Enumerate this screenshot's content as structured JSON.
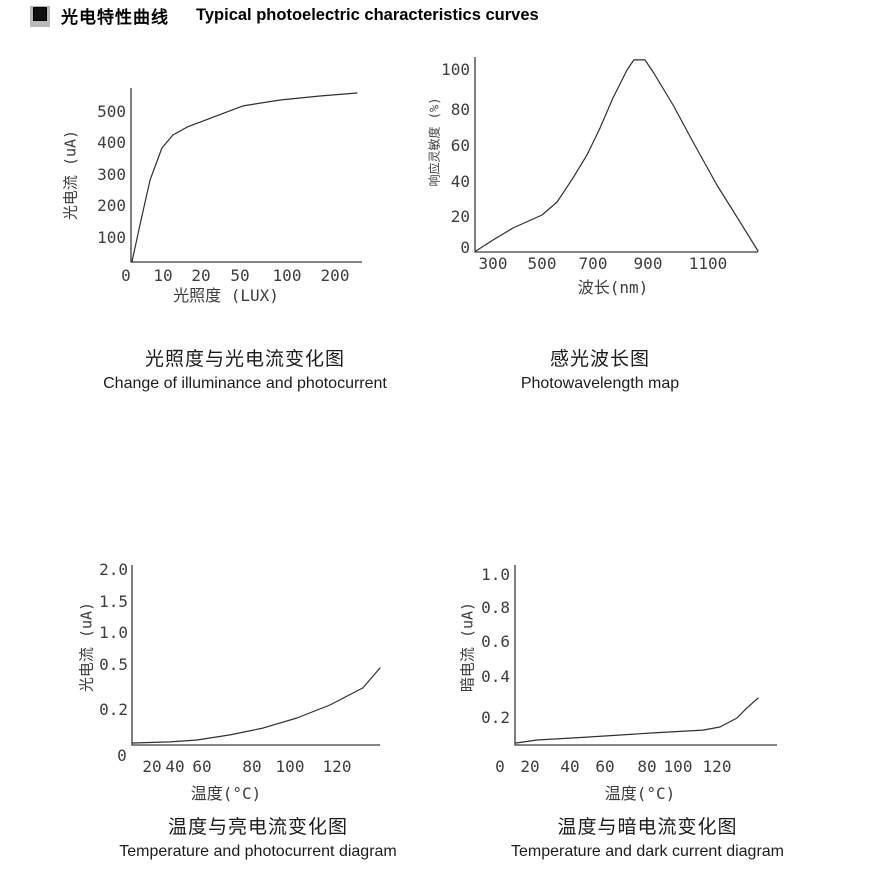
{
  "header": {
    "title_zh": "光电特性曲线",
    "title_en": "Typical photoelectric characteristics curves"
  },
  "colors": {
    "curve_line": "#2f2f2f",
    "axis_line": "#3a3a3a",
    "text": "#000000",
    "header_marker": "#111111",
    "header_marker_shadow": "#b9b9b9"
  },
  "charts": [
    {
      "y_label": "光电流 (uA)",
      "x_label": "光照度 (LUX)",
      "y_ticks": [
        "500",
        "400",
        "300",
        "200",
        "100"
      ],
      "x_ticks": [
        "0",
        "10",
        "20",
        "50",
        "100",
        "200"
      ],
      "caption_zh": "光照度与光电流变化图",
      "caption_en": "Change of illuminance and photocurrent"
    },
    {
      "y_label": "响应灵敏度 (%)",
      "x_label": "波长(nm)",
      "y_ticks": [
        "100",
        "80",
        "60",
        "40",
        "20",
        "0"
      ],
      "x_ticks": [
        "300",
        "500",
        "700",
        "900",
        "1100"
      ],
      "caption_zh": "感光波长图",
      "caption_en": "Photowavelength map"
    },
    {
      "y_label": "光电流 (uA)",
      "x_label": "温度(°C)",
      "y_ticks": [
        "2.0",
        "1.5",
        "1.0",
        "0.5",
        "0.2"
      ],
      "origin_label": "0",
      "x_ticks": [
        "20",
        "40",
        "60",
        "80",
        "100",
        "120"
      ],
      "caption_zh": "温度与亮电流变化图",
      "caption_en": "Temperature and photocurrent diagram"
    },
    {
      "y_label": "暗电流 (uA)",
      "x_label": "温度(°C)",
      "y_ticks": [
        "1.0",
        "0.8",
        "0.6",
        "0.4",
        "0.2"
      ],
      "x_ticks": [
        "0",
        "20",
        "40",
        "60",
        "80",
        "100",
        "120"
      ],
      "caption_zh": "温度与暗电流变化图",
      "caption_en": "Temperature and dark current diagram"
    }
  ],
  "chart_data": [
    {
      "type": "line",
      "title_zh": "光照度与光电流变化图",
      "title_en": "Change of illuminance and photocurrent",
      "xlabel": "光照度 (LUX)",
      "ylabel": "光电流 (uA)",
      "x_ticks": [
        0,
        10,
        20,
        50,
        100,
        200
      ],
      "y_ticks": [
        100,
        200,
        300,
        400,
        500
      ],
      "ylim": [
        0,
        560
      ],
      "x_scale_note": "non-linear: ticks 0/10/20/50/100/200 evenly spaced",
      "x": [
        0,
        2,
        5,
        10,
        15,
        20,
        35,
        50,
        75,
        100,
        150,
        200,
        250
      ],
      "y": [
        0,
        120,
        280,
        380,
        400,
        415,
        450,
        470,
        490,
        505,
        520,
        532,
        540
      ],
      "curve_norm": [
        [
          0.004,
          1.0
        ],
        [
          0.04,
          0.78
        ],
        [
          0.083,
          0.53
        ],
        [
          0.135,
          0.345
        ],
        [
          0.183,
          0.27
        ],
        [
          0.245,
          0.225
        ],
        [
          0.314,
          0.19
        ],
        [
          0.36,
          0.167
        ],
        [
          0.489,
          0.103
        ],
        [
          0.651,
          0.069
        ],
        [
          0.825,
          0.046
        ],
        [
          0.987,
          0.029
        ]
      ]
    },
    {
      "type": "line",
      "title_zh": "感光波长图",
      "title_en": "Photowavelength map",
      "xlabel": "波长(nm)",
      "ylabel": "响应灵敏度 (%)",
      "x_ticks": [
        300,
        500,
        700,
        900,
        1100
      ],
      "y_ticks": [
        0,
        20,
        40,
        60,
        80,
        100
      ],
      "xlim": [
        280,
        1250
      ],
      "ylim": [
        0,
        110
      ],
      "peak": {
        "wavelength_nm": 830,
        "sensitivity_pct": 107
      },
      "x": [
        280,
        350,
        450,
        500,
        550,
        600,
        650,
        700,
        750,
        800,
        830,
        850,
        900,
        950,
        1000,
        1100,
        1200,
        1250
      ],
      "y": [
        0,
        8,
        18,
        25,
        35,
        48,
        62,
        78,
        92,
        103,
        107,
        106,
        98,
        85,
        70,
        45,
        15,
        0
      ],
      "curve_norm": [
        [
          0.003,
          0.995
        ],
        [
          0.062,
          0.939
        ],
        [
          0.131,
          0.878
        ],
        [
          0.231,
          0.812
        ],
        [
          0.283,
          0.746
        ],
        [
          0.338,
          0.624
        ],
        [
          0.386,
          0.508
        ],
        [
          0.431,
          0.371
        ],
        [
          0.476,
          0.218
        ],
        [
          0.524,
          0.076
        ],
        [
          0.548,
          0.025
        ],
        [
          0.586,
          0.025
        ],
        [
          0.614,
          0.086
        ],
        [
          0.683,
          0.254
        ],
        [
          0.752,
          0.442
        ],
        [
          0.834,
          0.66
        ],
        [
          0.914,
          0.848
        ],
        [
          0.976,
          0.995
        ]
      ]
    },
    {
      "type": "line",
      "title_zh": "温度与亮电流变化图",
      "title_en": "Temperature and photocurrent diagram",
      "xlabel": "温度(°C)",
      "ylabel": "光电流 (uA)",
      "x_ticks": [
        0,
        20,
        40,
        60,
        80,
        100,
        120
      ],
      "y_ticks": [
        0,
        0.2,
        0.5,
        1.0,
        1.5,
        2.0
      ],
      "y_scale_note": "tick spacing as printed is non-linear below 0.5",
      "x": [
        10,
        30,
        50,
        70,
        90,
        110,
        130,
        145
      ],
      "y": [
        0.01,
        0.02,
        0.05,
        0.09,
        0.15,
        0.25,
        0.38,
        0.5
      ],
      "curve_norm": [
        [
          0.004,
          0.989
        ],
        [
          0.153,
          0.983
        ],
        [
          0.262,
          0.972
        ],
        [
          0.395,
          0.944
        ],
        [
          0.528,
          0.906
        ],
        [
          0.665,
          0.85
        ],
        [
          0.798,
          0.778
        ],
        [
          0.931,
          0.683
        ],
        [
          1.0,
          0.572
        ]
      ]
    },
    {
      "type": "line",
      "title_zh": "温度与暗电流变化图",
      "title_en": "Temperature and dark current diagram",
      "xlabel": "温度(°C)",
      "ylabel": "暗电流 (uA)",
      "x_ticks": [
        0,
        20,
        40,
        60,
        80,
        100,
        120
      ],
      "y_ticks": [
        0,
        0.2,
        0.4,
        0.6,
        0.8,
        1.0
      ],
      "x": [
        0,
        20,
        40,
        60,
        80,
        100,
        110,
        120,
        128,
        135
      ],
      "y": [
        0.02,
        0.04,
        0.05,
        0.06,
        0.07,
        0.09,
        0.1,
        0.13,
        0.2,
        0.3
      ],
      "curve_norm": [
        [
          0.004,
          0.989
        ],
        [
          0.085,
          0.972
        ],
        [
          0.277,
          0.956
        ],
        [
          0.531,
          0.933
        ],
        [
          0.723,
          0.917
        ],
        [
          0.788,
          0.9
        ],
        [
          0.854,
          0.85
        ],
        [
          0.892,
          0.794
        ],
        [
          0.935,
          0.739
        ]
      ]
    }
  ]
}
